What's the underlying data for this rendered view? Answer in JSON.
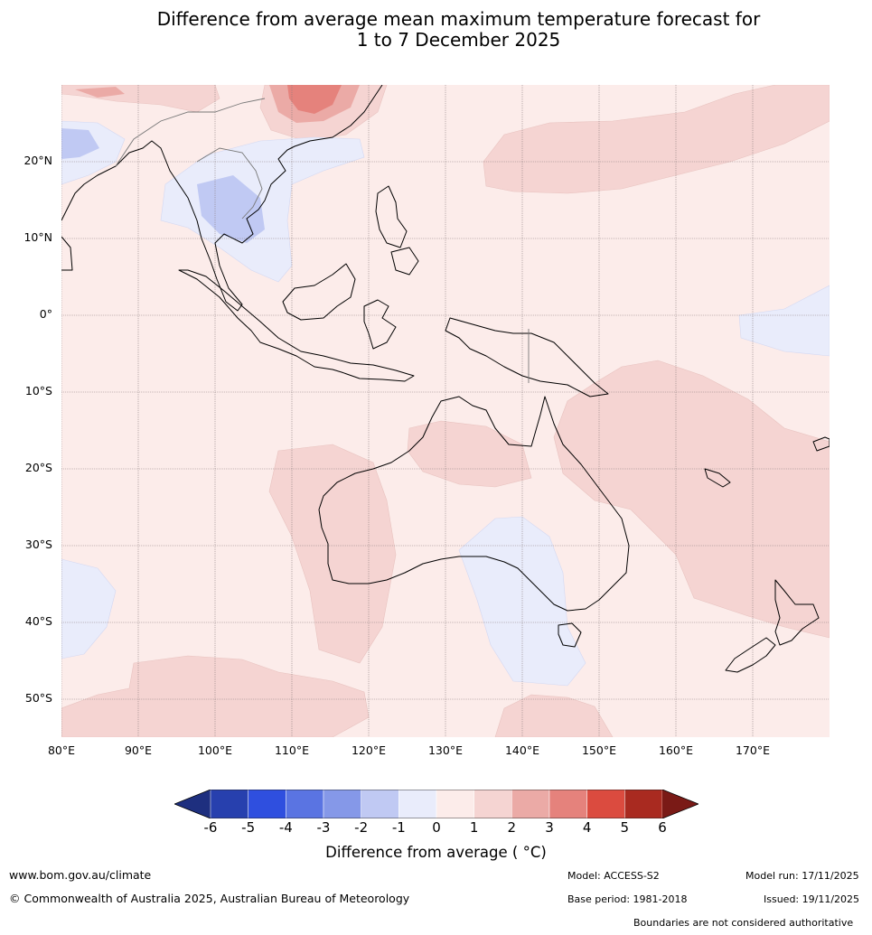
{
  "title": {
    "line1": "Difference from average mean maximum temperature forecast for",
    "line2": "1 to 7 December 2025"
  },
  "map": {
    "region": "Australia, Maritime Continent, Southeast Asia and Southwest Pacific",
    "lat_labels": [
      "20°N",
      "10°N",
      "0°",
      "10°S",
      "20°S",
      "30°S",
      "40°S",
      "50°S"
    ],
    "lon_labels": [
      "80°E",
      "90°E",
      "100°E",
      "110°E",
      "120°E",
      "130°E",
      "140°E",
      "150°E",
      "160°E",
      "170°E"
    ],
    "background_category": "0 to 1",
    "warm_regions_category": "1 to 2",
    "cool_regions_category": "-1 to 0"
  },
  "colorbar": {
    "label": "Difference from average ( °C)",
    "ticks": [
      "-6",
      "-5",
      "-4",
      "-3",
      "-2",
      "-1",
      "0",
      "1",
      "2",
      "3",
      "4",
      "5",
      "6"
    ],
    "extend_low_color": "#1e2f7f",
    "extend_high_color": "#7a1a16",
    "colors": [
      "#2740ae",
      "#2f4fdf",
      "#5a74e2",
      "#8598e8",
      "#c0c9f3",
      "#e9ecfb",
      "#fcecea",
      "#f5d4d2",
      "#ebaaa6",
      "#e5827c",
      "#db4b3f",
      "#a92a20"
    ]
  },
  "footer": {
    "website": "www.bom.gov.au/climate",
    "copyright": "© Commonwealth of Australia 2025, Australian Bureau of Meteorology",
    "model": "Model: ACCESS-S2",
    "model_run": "Model run: 17/11/2025",
    "base_period": "Base period: 1981-2018",
    "issued": "Issued: 19/11/2025",
    "disclaimer": "Boundaries are not considered authoritative"
  },
  "colors": {
    "grid": "#8c7f7f",
    "coast": "#000000",
    "border": "#777777"
  }
}
